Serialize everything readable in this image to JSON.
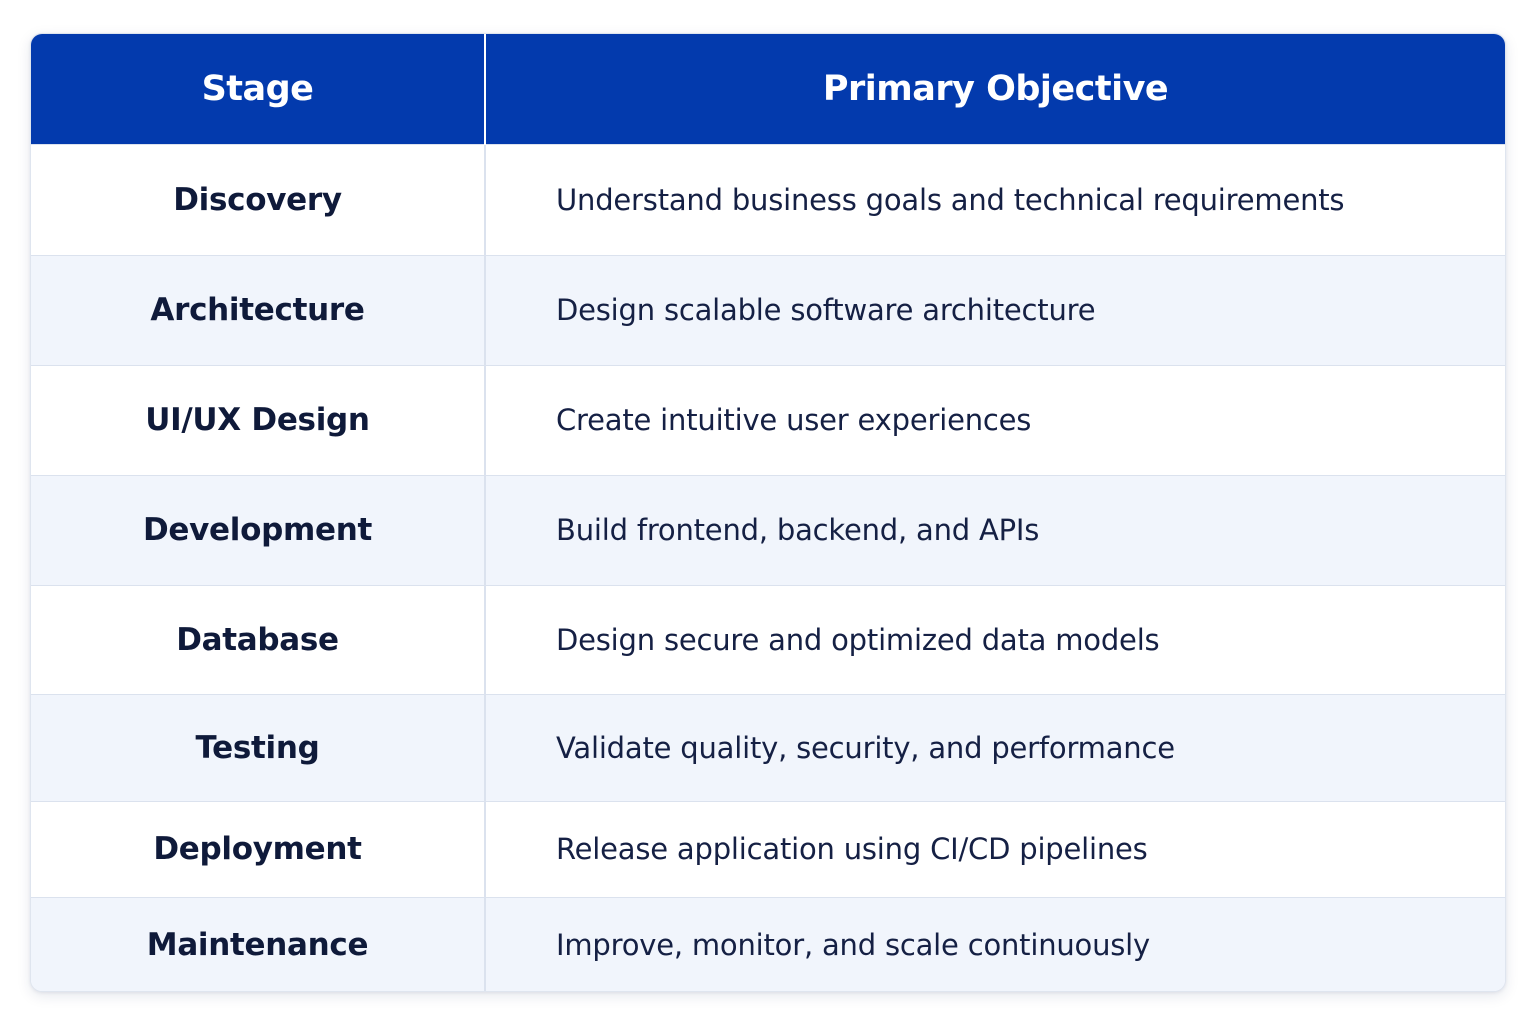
{
  "table": {
    "headers": {
      "stage": "Stage",
      "objective": "Primary Objective"
    },
    "rows": [
      {
        "stage": "Discovery",
        "objective": "Understand business goals and technical requirements"
      },
      {
        "stage": "Architecture",
        "objective": "Design scalable software architecture"
      },
      {
        "stage": "UI/UX Design",
        "objective": "Create intuitive user experiences"
      },
      {
        "stage": "Development",
        "objective": "Build frontend, backend, and APIs"
      },
      {
        "stage": "Database",
        "objective": "Design secure and optimized data models"
      },
      {
        "stage": "Testing",
        "objective": "Validate quality, security, and performance"
      },
      {
        "stage": "Deployment",
        "objective": "Release application using CI/CD pipelines"
      },
      {
        "stage": "Maintenance",
        "objective": "Improve, monitor, and scale continuously"
      }
    ]
  },
  "colors": {
    "header_background": "#033aad",
    "header_text": "#ffffff",
    "row_alt_background": "#f1f5fc",
    "body_text": "#0f1a3a"
  }
}
